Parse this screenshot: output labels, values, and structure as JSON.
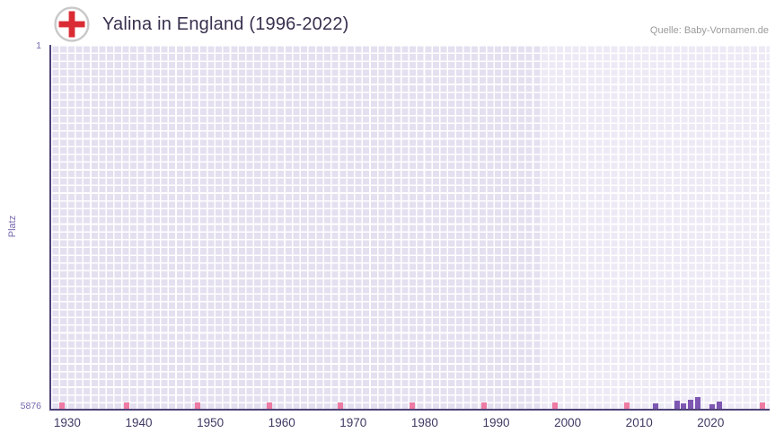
{
  "header": {
    "title": "Yalina in England (1996-2022)",
    "source": "Quelle: Baby-Vornamen.de"
  },
  "chart_data": {
    "type": "bar",
    "title": "Yalina in England (1996-2022)",
    "xlabel": "",
    "ylabel": "Platz",
    "grid": true,
    "y_axis": {
      "min": 1,
      "max": 5876,
      "inverted": true,
      "top_label": "1",
      "bottom_label": "5876"
    },
    "x_axis": {
      "min": 1927.5,
      "max": 2028,
      "ticks": [
        1930,
        1940,
        1950,
        1960,
        1970,
        1980,
        1990,
        2000,
        2010,
        2020
      ]
    },
    "highlight_region": {
      "from": 1996,
      "to": 2028
    },
    "points": [
      {
        "year": 2012,
        "rank": 5795
      },
      {
        "year": 2015,
        "rank": 5745
      },
      {
        "year": 2016,
        "rank": 5785
      },
      {
        "year": 2017,
        "rank": 5735
      },
      {
        "year": 2018,
        "rank": 5690
      },
      {
        "year": 2020,
        "rank": 5805
      },
      {
        "year": 2021,
        "rank": 5755
      }
    ],
    "no_data_mark_years": [
      1929,
      1938,
      1948,
      1958,
      1968,
      1978,
      1988,
      1998,
      2008,
      2027
    ],
    "colors": {
      "bar": "#7e57b2",
      "mark": "#ee7ba3",
      "axis": "#4e4277",
      "tick": "#7668ae",
      "grid_bg": "#e4e0f0",
      "grid_bg_light": "#edeaf6",
      "flag_red": "#da2c35"
    }
  }
}
